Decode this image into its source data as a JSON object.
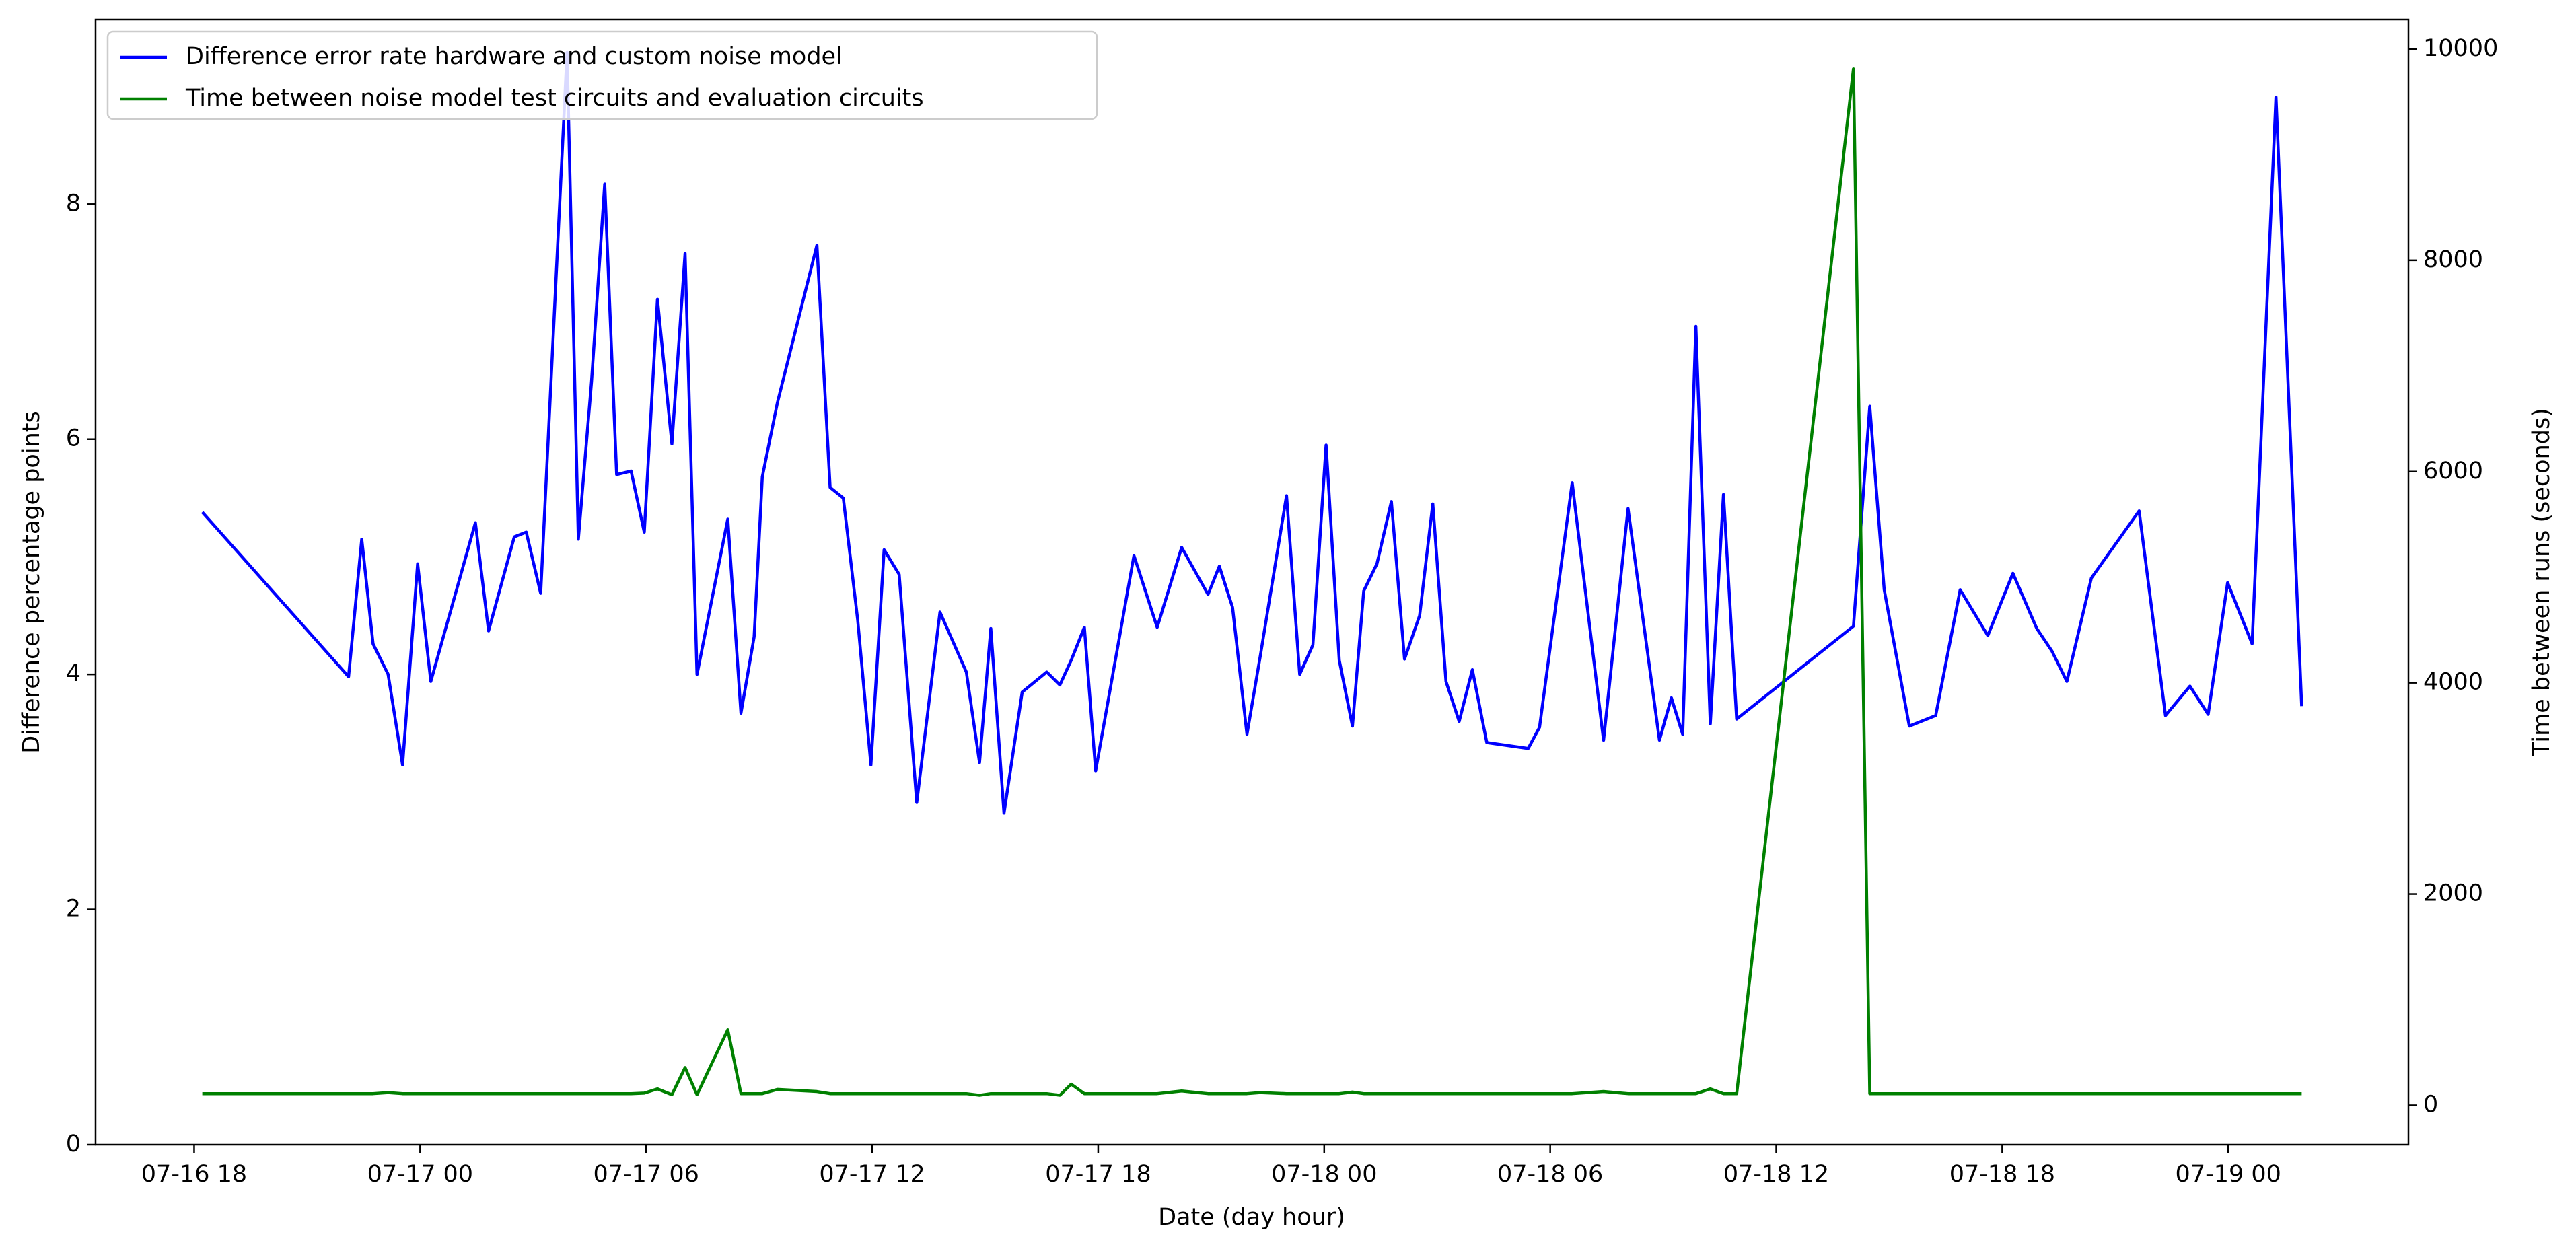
{
  "chart_data": {
    "type": "line",
    "xlabel": "Date (day hour)",
    "ylabel": "Difference percentage points",
    "y2label": "Time between runs (seconds)",
    "legend": "upper left",
    "grid": false,
    "x": [
      "07-16 18:13",
      "07-16 22:06",
      "07-16 22:27",
      "07-16 22:45",
      "07-16 23:09",
      "07-16 23:32",
      "07-16 23:56",
      "07-17 00:17",
      "07-17 01:28",
      "07-17 01:49",
      "07-17 02:30",
      "07-17 02:49",
      "07-17 03:12",
      "07-17 03:54",
      "07-17 04:12",
      "07-17 04:33",
      "07-17 04:54",
      "07-17 05:13",
      "07-17 05:36",
      "07-17 05:57",
      "07-17 06:18",
      "07-17 06:41",
      "07-17 07:02",
      "07-17 07:21",
      "07-17 08:10",
      "07-17 08:31",
      "07-17 08:52",
      "07-17 09:05",
      "07-17 09:29",
      "07-17 10:32",
      "07-17 10:53",
      "07-17 11:14",
      "07-17 11:37",
      "07-17 11:58",
      "07-17 12:19",
      "07-17 12:43",
      "07-17 13:11",
      "07-17 13:48",
      "07-17 14:30",
      "07-17 14:51",
      "07-17 15:09",
      "07-17 15:30",
      "07-17 15:59",
      "07-17 16:38",
      "07-17 16:59",
      "07-17 17:17",
      "07-17 17:38",
      "07-17 17:56",
      "07-17 18:57",
      "07-17 19:34",
      "07-17 20:13",
      "07-17 20:55",
      "07-17 21:13",
      "07-17 21:34",
      "07-17 21:57",
      "07-17 22:18",
      "07-17 23:00",
      "07-17 23:21",
      "07-17 23:42",
      "07-18 00:03",
      "07-18 00:24",
      "07-18 00:45",
      "07-18 01:03",
      "07-18 01:24",
      "07-18 01:47",
      "07-18 02:08",
      "07-18 02:32",
      "07-18 02:53",
      "07-18 03:14",
      "07-18 03:35",
      "07-18 03:56",
      "07-18 04:19",
      "07-18 05:25",
      "07-18 05:43",
      "07-18 06:35",
      "07-18 07:25",
      "07-18 08:04",
      "07-18 08:54",
      "07-18 09:13",
      "07-18 09:31",
      "07-18 09:52",
      "07-18 10:15",
      "07-18 10:36",
      "07-18 10:57",
      "07-18 14:03",
      "07-18 14:29",
      "07-18 14:52",
      "07-18 15:32",
      "07-18 16:14",
      "07-18 16:53",
      "07-18 17:37",
      "07-18 18:17",
      "07-18 18:55",
      "07-18 19:19",
      "07-18 19:43",
      "07-18 20:22",
      "07-18 21:38",
      "07-18 22:20",
      "07-18 22:59",
      "07-18 23:28",
      "07-18 23:59",
      "07-19 00:38",
      "07-19 01:16",
      "07-19 01:57"
    ],
    "series": [
      {
        "name": "Difference error rate hardware and custom noise model",
        "color": "#0000ff",
        "values": [
          5.38,
          3.98,
          5.15,
          4.26,
          4.0,
          3.23,
          4.94,
          3.94,
          5.29,
          4.37,
          5.17,
          5.21,
          4.69,
          9.29,
          5.15,
          6.49,
          8.17,
          5.7,
          5.73,
          5.21,
          7.19,
          5.96,
          7.58,
          4.0,
          5.32,
          3.67,
          4.32,
          5.68,
          6.31,
          7.65,
          5.59,
          5.5,
          4.46,
          3.23,
          5.06,
          4.85,
          2.91,
          4.53,
          4.02,
          3.25,
          4.39,
          2.82,
          3.85,
          4.02,
          3.91,
          4.12,
          4.4,
          3.18,
          5.01,
          4.4,
          5.08,
          4.68,
          4.92,
          4.57,
          3.49,
          4.15,
          5.52,
          4.0,
          4.25,
          5.95,
          4.12,
          3.56,
          4.71,
          4.94,
          5.47,
          4.13,
          4.5,
          5.45,
          3.94,
          3.6,
          4.04,
          3.42,
          3.37,
          3.55,
          5.63,
          3.44,
          5.41,
          3.44,
          3.8,
          3.49,
          6.96,
          3.58,
          5.53,
          3.62,
          4.41,
          6.28,
          4.72,
          3.56,
          3.65,
          4.72,
          4.33,
          4.86,
          4.39,
          4.2,
          3.94,
          4.82,
          5.39,
          3.65,
          3.9,
          3.66,
          4.78,
          4.26,
          8.91,
          3.73
        ]
      },
      {
        "name": "Time between noise model test circuits and evaluation circuits",
        "color": "#008000",
        "axis": "y2",
        "values": [
          110,
          110,
          110,
          110,
          120,
          110,
          110,
          110,
          110,
          110,
          110,
          110,
          110,
          110,
          110,
          110,
          110,
          110,
          110,
          115,
          155,
          100,
          357,
          100,
          715,
          110,
          110,
          110,
          150,
          130,
          110,
          110,
          110,
          110,
          110,
          110,
          110,
          110,
          110,
          95,
          110,
          110,
          110,
          110,
          95,
          200,
          110,
          110,
          110,
          110,
          135,
          110,
          110,
          110,
          110,
          120,
          110,
          110,
          110,
          110,
          110,
          125,
          110,
          110,
          110,
          110,
          110,
          110,
          110,
          110,
          110,
          110,
          110,
          110,
          110,
          130,
          110,
          110,
          110,
          110,
          110,
          155,
          110,
          110,
          9813,
          110,
          110,
          110,
          110,
          110,
          110,
          110,
          110,
          110,
          110,
          110,
          110,
          110,
          110,
          110,
          110,
          110,
          110,
          110
        ]
      }
    ],
    "xlim": [
      "07-16 15:23",
      "07-19 04:47"
    ],
    "xticks": [
      {
        "value": "07-16 18:00",
        "label": "07-16 18"
      },
      {
        "value": "07-17 00:00",
        "label": "07-17 00"
      },
      {
        "value": "07-17 06:00",
        "label": "07-17 06"
      },
      {
        "value": "07-17 12:00",
        "label": "07-17 12"
      },
      {
        "value": "07-17 18:00",
        "label": "07-17 18"
      },
      {
        "value": "07-18 00:00",
        "label": "07-18 00"
      },
      {
        "value": "07-18 06:00",
        "label": "07-18 06"
      },
      {
        "value": "07-18 12:00",
        "label": "07-18 12"
      },
      {
        "value": "07-18 18:00",
        "label": "07-18 18"
      },
      {
        "value": "07-19 00:00",
        "label": "07-19 00"
      }
    ],
    "ylim": [
      0,
      9.57
    ],
    "yticks": [
      0,
      2,
      4,
      6,
      8
    ],
    "y2lim": [
      -373,
      10280
    ],
    "y2ticks": [
      0,
      2000,
      4000,
      6000,
      8000,
      10000
    ]
  }
}
